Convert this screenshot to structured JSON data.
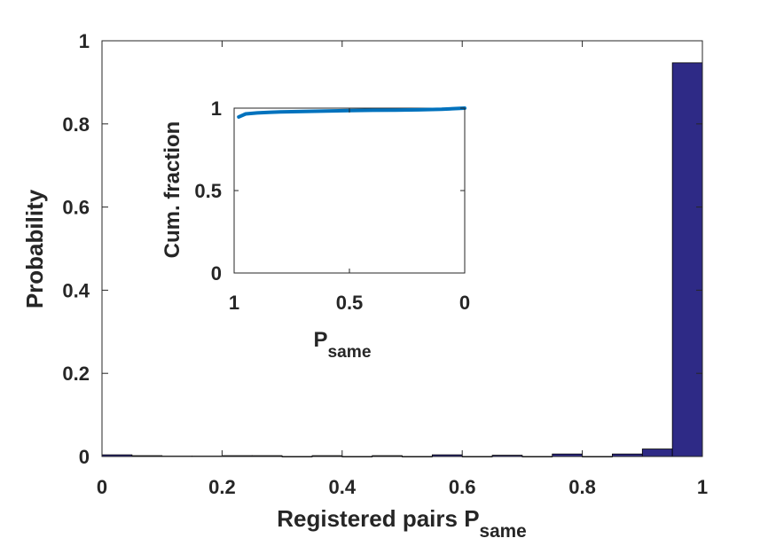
{
  "chart_data": [
    {
      "type": "bar",
      "role": "main",
      "xlabel": "Registered pairs P",
      "xlabel_sub": "same",
      "ylabel": "Probability",
      "xlim": [
        0,
        1
      ],
      "ylim": [
        0,
        1
      ],
      "xticks": [
        "0",
        "0.2",
        "0.4",
        "0.6",
        "0.8",
        "1"
      ],
      "yticks": [
        "0",
        "0.2",
        "0.4",
        "0.6",
        "0.8",
        "1"
      ],
      "bin_width": 0.05,
      "bar_color": "#2e2a86",
      "bars": [
        {
          "x": 0.025,
          "value": 0.004
        },
        {
          "x": 0.075,
          "value": 0.002
        },
        {
          "x": 0.125,
          "value": 0.001
        },
        {
          "x": 0.175,
          "value": 0.001
        },
        {
          "x": 0.225,
          "value": 0.002
        },
        {
          "x": 0.275,
          "value": 0.002
        },
        {
          "x": 0.325,
          "value": 0.0
        },
        {
          "x": 0.375,
          "value": 0.002
        },
        {
          "x": 0.425,
          "value": 0.0
        },
        {
          "x": 0.475,
          "value": 0.002
        },
        {
          "x": 0.525,
          "value": 0.0
        },
        {
          "x": 0.575,
          "value": 0.004
        },
        {
          "x": 0.625,
          "value": 0.0
        },
        {
          "x": 0.675,
          "value": 0.003
        },
        {
          "x": 0.725,
          "value": 0.0
        },
        {
          "x": 0.775,
          "value": 0.006
        },
        {
          "x": 0.825,
          "value": 0.0
        },
        {
          "x": 0.875,
          "value": 0.006
        },
        {
          "x": 0.925,
          "value": 0.018
        },
        {
          "x": 0.975,
          "value": 0.947
        }
      ]
    },
    {
      "type": "line",
      "role": "inset",
      "xlabel": "P",
      "xlabel_sub": "same",
      "ylabel": "Cum. fraction",
      "xlim": [
        1,
        0
      ],
      "x_reversed": true,
      "ylim": [
        0,
        1
      ],
      "xticks": [
        "1",
        "0.5",
        "0"
      ],
      "yticks": [
        "0",
        "0.5",
        "1"
      ],
      "line_color": "#0072bd",
      "series": [
        {
          "x": [
            0.98,
            0.95,
            0.9,
            0.85,
            0.8,
            0.7,
            0.6,
            0.5,
            0.4,
            0.3,
            0.2,
            0.1,
            0.0
          ],
          "y": [
            0.947,
            0.965,
            0.971,
            0.975,
            0.977,
            0.98,
            0.983,
            0.985,
            0.987,
            0.988,
            0.99,
            0.993,
            1.0
          ]
        }
      ]
    }
  ]
}
